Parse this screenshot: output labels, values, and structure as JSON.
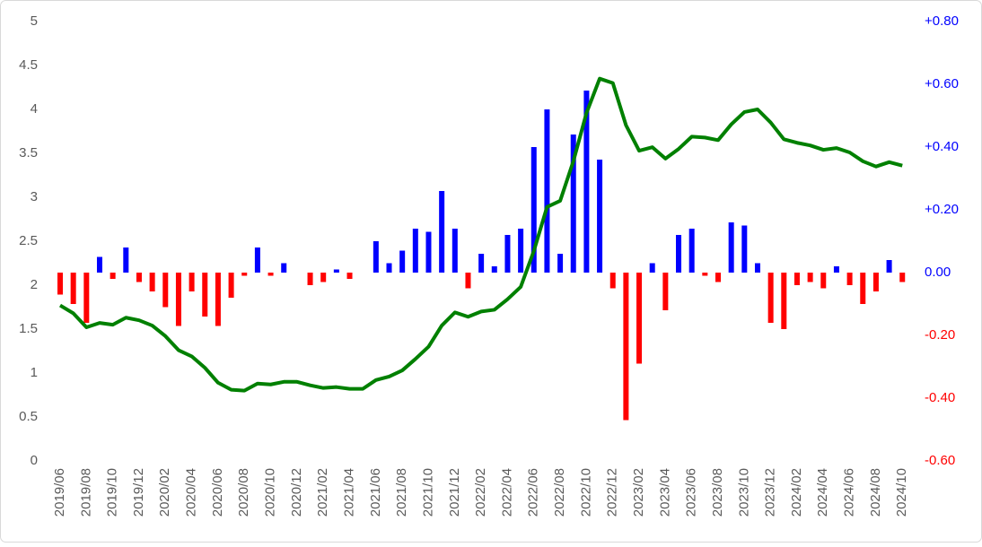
{
  "chart_data": {
    "type": "combo",
    "categories": [
      "2019/06",
      null,
      "2019/08",
      null,
      "2019/10",
      null,
      "2019/12",
      null,
      "2020/02",
      null,
      "2020/04",
      null,
      "2020/06",
      null,
      "2020/08",
      null,
      "2020/10",
      null,
      "2020/12",
      null,
      "2021/02",
      null,
      "2021/04",
      null,
      "2021/06",
      null,
      "2021/08",
      null,
      "2021/10",
      null,
      "2021/12",
      null,
      "2022/02",
      null,
      "2022/04",
      null,
      "2022/06",
      null,
      "2022/08",
      null,
      "2022/10",
      null,
      "2022/12",
      null,
      "2023/02",
      null,
      "2023/04",
      null,
      "2023/06",
      null,
      "2023/08",
      null,
      "2023/10",
      null,
      "2023/12",
      null,
      "2024/02",
      null,
      "2024/04",
      null,
      "2024/06",
      null,
      "2024/08",
      null,
      "2024/10"
    ],
    "series": [
      {
        "type": "bar",
        "axis": "y2",
        "positive_color": "#0000ff",
        "negative_color": "#ff0000",
        "values": [
          -0.07,
          -0.1,
          -0.16,
          0.05,
          -0.02,
          0.08,
          -0.03,
          -0.06,
          -0.11,
          -0.17,
          -0.06,
          -0.14,
          -0.17,
          -0.08,
          -0.01,
          0.08,
          -0.01,
          0.03,
          0,
          -0.04,
          -0.03,
          0.01,
          -0.02,
          0,
          0.1,
          0.03,
          0.07,
          0.14,
          0.13,
          0.26,
          0.14,
          -0.05,
          0.06,
          0.02,
          0.12,
          0.14,
          0.4,
          0.52,
          0.06,
          0.44,
          0.58,
          0.36,
          -0.05,
          -0.47,
          -0.29,
          0.03,
          -0.12,
          0.12,
          0.14,
          -0.01,
          -0.03,
          0.16,
          0.15,
          0.03,
          -0.16,
          -0.18,
          -0.04,
          -0.03,
          -0.05,
          0.02,
          -0.04,
          -0.1,
          -0.06,
          0.04,
          -0.03
        ]
      },
      {
        "type": "line",
        "color": "#008000",
        "values": [
          1.77,
          1.68,
          1.52,
          1.57,
          1.55,
          1.63,
          1.6,
          1.54,
          1.42,
          1.26,
          1.19,
          1.06,
          0.89,
          0.81,
          0.8,
          0.88,
          0.87,
          0.9,
          0.9,
          0.86,
          0.83,
          0.84,
          0.82,
          0.82,
          0.92,
          0.96,
          1.03,
          1.16,
          1.3,
          1.54,
          1.69,
          1.64,
          1.7,
          1.72,
          1.84,
          1.98,
          2.39,
          2.89,
          2.96,
          3.41,
          3.96,
          4.35,
          4.3,
          3.82,
          3.53,
          3.57,
          3.44,
          3.55,
          3.69,
          3.68,
          3.65,
          3.83,
          3.97,
          4.0,
          3.85,
          3.66,
          3.62,
          3.59,
          3.54,
          3.56,
          3.51,
          3.41,
          3.35,
          3.4,
          3.36
        ]
      }
    ],
    "ylim": [
      0,
      5
    ],
    "yticks": [
      0,
      0.5,
      1,
      1.5,
      2,
      2.5,
      3,
      3.5,
      4,
      4.5,
      5
    ],
    "y2lim": [
      -0.6,
      0.8
    ],
    "y2ticks": [
      {
        "value": -0.6,
        "label": "-0.60"
      },
      {
        "value": -0.4,
        "label": "-0.40"
      },
      {
        "value": -0.2,
        "label": "-0.20"
      },
      {
        "value": 0,
        "label": "0.00"
      },
      {
        "value": 0.2,
        "label": "+0.20"
      },
      {
        "value": 0.4,
        "label": "+0.40"
      },
      {
        "value": 0.6,
        "label": "+0.60"
      },
      {
        "value": 0.8,
        "label": "+0.80"
      }
    ],
    "grid": false
  }
}
